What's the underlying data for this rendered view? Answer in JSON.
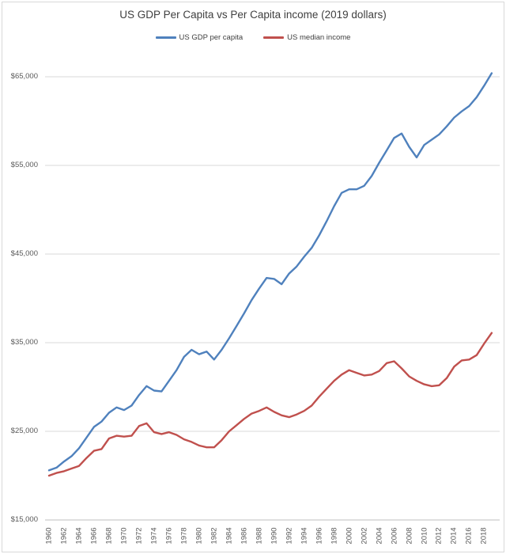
{
  "chart": {
    "title": "US GDP Per Capita vs Per Capita income (2019 dollars)",
    "background": "#ffffff",
    "border_color": "#d9d9d9",
    "gridline_color": "#d9d9d9",
    "axis_line_color": "#bfbfbf",
    "tick_label_color": "#595959",
    "title_color": "#3f3f3f"
  },
  "legend": {
    "items": [
      {
        "label": "US GDP per capita",
        "color": "#4F81BD"
      },
      {
        "label": "US median income",
        "color": "#C0504D"
      }
    ]
  },
  "chart_data": {
    "type": "line",
    "title": "US GDP Per Capita vs Per Capita income (2019 dollars)",
    "xlabel": "",
    "ylabel": "",
    "grid": true,
    "legend_position": "top",
    "ylim": [
      15000,
      65000
    ],
    "y_ticks": [
      15000,
      25000,
      35000,
      45000,
      55000,
      65000
    ],
    "y_tick_labels": [
      "$15,000",
      "$25,000",
      "$35,000",
      "$45,000",
      "$55,000",
      "$65,000"
    ],
    "x_tick_labels": [
      "1960",
      "1962",
      "1964",
      "1966",
      "1968",
      "1970",
      "1972",
      "1974",
      "1976",
      "1978",
      "1980",
      "1982",
      "1984",
      "1986",
      "1988",
      "1990",
      "1992",
      "1994",
      "1996",
      "1998",
      "2000",
      "2002",
      "2004",
      "2006",
      "2008",
      "2010",
      "2012",
      "2014",
      "2016",
      "2018"
    ],
    "x": [
      1960,
      1961,
      1962,
      1963,
      1964,
      1965,
      1966,
      1967,
      1968,
      1969,
      1970,
      1971,
      1972,
      1973,
      1974,
      1975,
      1976,
      1977,
      1978,
      1979,
      1980,
      1981,
      1982,
      1983,
      1984,
      1985,
      1986,
      1987,
      1988,
      1989,
      1990,
      1991,
      1992,
      1993,
      1994,
      1995,
      1996,
      1997,
      1998,
      1999,
      2000,
      2001,
      2002,
      2003,
      2004,
      2005,
      2006,
      2007,
      2008,
      2009,
      2010,
      2011,
      2012,
      2013,
      2014,
      2015,
      2016,
      2017,
      2018,
      2019
    ],
    "series": [
      {
        "name": "US GDP per capita",
        "color": "#4F81BD",
        "values": [
          20600,
          20900,
          21600,
          22200,
          23100,
          24300,
          25500,
          26100,
          27100,
          27700,
          27400,
          27900,
          29100,
          30100,
          29600,
          29500,
          30700,
          31900,
          33400,
          34200,
          33700,
          34000,
          33100,
          34200,
          35500,
          36900,
          38300,
          39800,
          41100,
          42300,
          42200,
          41600,
          42800,
          43600,
          44700,
          45700,
          47100,
          48700,
          50400,
          51900,
          52300,
          52300,
          52700,
          53800,
          55300,
          56700,
          58100,
          58600,
          57100,
          55900,
          57300,
          57900,
          58500,
          59400,
          60400,
          61100,
          61700,
          62700,
          64000,
          65400
        ]
      },
      {
        "name": "US median income",
        "color": "#C0504D",
        "values": [
          20000,
          20300,
          20500,
          20800,
          21100,
          22000,
          22800,
          23000,
          24200,
          24500,
          24400,
          24500,
          25600,
          25900,
          24900,
          24700,
          24900,
          24600,
          24100,
          23800,
          23400,
          23200,
          23200,
          24000,
          25000,
          25700,
          26400,
          27000,
          27300,
          27700,
          27200,
          26800,
          26600,
          26900,
          27300,
          27900,
          28900,
          29800,
          30700,
          31400,
          31900,
          31600,
          31300,
          31400,
          31800,
          32700,
          32900,
          32100,
          31200,
          30700,
          30300,
          30100,
          30200,
          31000,
          32300,
          33000,
          33100,
          33600,
          34900,
          36100
        ]
      }
    ]
  }
}
